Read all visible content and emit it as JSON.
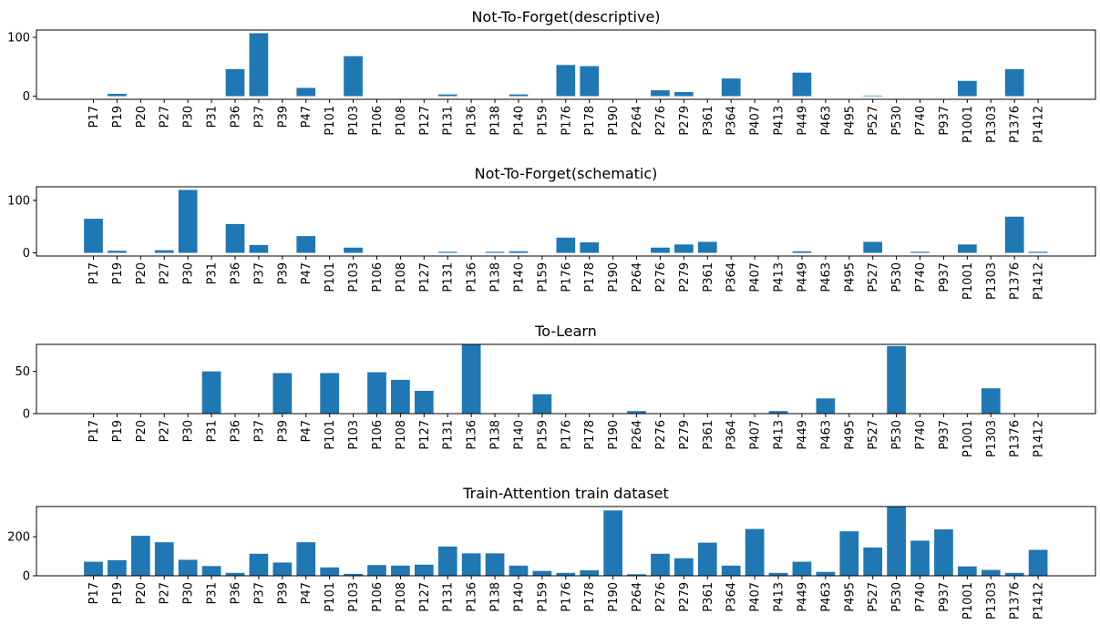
{
  "chart_data": [
    {
      "type": "bar",
      "title": "Not-To-Forget(descriptive)",
      "xlabel": "",
      "ylabel": "",
      "categories": [
        "P17",
        "P19",
        "P20",
        "P27",
        "P30",
        "P31",
        "P36",
        "P37",
        "P39",
        "P47",
        "P101",
        "P103",
        "P106",
        "P108",
        "P127",
        "P131",
        "P136",
        "P138",
        "P140",
        "P159",
        "P176",
        "P178",
        "P190",
        "P264",
        "P276",
        "P279",
        "P361",
        "P364",
        "P407",
        "P413",
        "P449",
        "P463",
        "P495",
        "P527",
        "P530",
        "P740",
        "P937",
        "P1001",
        "P1303",
        "P1376",
        "P1412"
      ],
      "values": [
        0,
        4,
        0,
        0,
        0,
        0,
        46,
        107,
        0,
        14,
        0,
        68,
        0,
        0,
        0,
        3,
        0,
        0,
        3,
        0,
        53,
        51,
        0,
        0,
        10,
        7,
        0,
        30,
        0,
        0,
        40,
        0,
        0,
        1,
        0,
        0,
        0,
        26,
        0,
        46,
        0
      ],
      "ylim": [
        -5.35,
        112.35
      ],
      "yticks": [
        0,
        100
      ],
      "color": "#1f77b4",
      "grid": false
    },
    {
      "type": "bar",
      "title": "Not-To-Forget(schematic)",
      "xlabel": "",
      "ylabel": "",
      "categories": [
        "P17",
        "P19",
        "P20",
        "P27",
        "P30",
        "P31",
        "P36",
        "P37",
        "P39",
        "P47",
        "P101",
        "P103",
        "P106",
        "P108",
        "P127",
        "P131",
        "P136",
        "P138",
        "P140",
        "P159",
        "P176",
        "P178",
        "P190",
        "P264",
        "P276",
        "P279",
        "P361",
        "P364",
        "P407",
        "P413",
        "P449",
        "P463",
        "P495",
        "P527",
        "P530",
        "P740",
        "P937",
        "P1001",
        "P1303",
        "P1376",
        "P1412"
      ],
      "values": [
        65,
        4,
        0,
        5,
        120,
        0,
        55,
        15,
        0,
        32,
        0,
        10,
        0,
        0,
        0,
        2,
        0,
        2,
        3,
        0,
        29,
        20,
        0,
        0,
        10,
        16,
        21,
        0,
        0,
        0,
        3,
        0,
        0,
        21,
        0,
        2,
        0,
        16,
        0,
        69,
        2
      ],
      "ylim": [
        -6,
        126
      ],
      "yticks": [
        0,
        100
      ],
      "color": "#1f77b4",
      "grid": false
    },
    {
      "type": "bar",
      "title": "To-Learn",
      "xlabel": "",
      "ylabel": "",
      "categories": [
        "P17",
        "P19",
        "P20",
        "P27",
        "P30",
        "P31",
        "P36",
        "P37",
        "P39",
        "P47",
        "P101",
        "P103",
        "P106",
        "P108",
        "P127",
        "P131",
        "P136",
        "P138",
        "P140",
        "P159",
        "P176",
        "P178",
        "P190",
        "P264",
        "P276",
        "P279",
        "P361",
        "P364",
        "P407",
        "P413",
        "P449",
        "P463",
        "P495",
        "P527",
        "P530",
        "P740",
        "P937",
        "P1001",
        "P1303",
        "P1376",
        "P1412"
      ],
      "values": [
        0,
        0,
        0,
        0,
        0,
        50,
        0,
        0,
        48,
        0,
        48,
        0,
        49,
        40,
        27,
        0,
        82,
        0,
        0,
        23,
        0,
        0,
        0,
        3,
        0,
        0,
        0,
        0,
        0,
        3,
        0,
        18,
        0,
        0,
        80,
        0,
        0,
        0,
        30,
        0,
        0
      ],
      "ylim": [
        0,
        82
      ],
      "yticks": [
        0,
        50
      ],
      "color": "#1f77b4",
      "grid": false
    },
    {
      "type": "bar",
      "title": "Train-Attention train dataset",
      "xlabel": "",
      "ylabel": "",
      "categories": [
        "P17",
        "P19",
        "P20",
        "P27",
        "P30",
        "P31",
        "P36",
        "P37",
        "P39",
        "P47",
        "P101",
        "P103",
        "P106",
        "P108",
        "P127",
        "P131",
        "P136",
        "P138",
        "P140",
        "P159",
        "P176",
        "P178",
        "P190",
        "P264",
        "P276",
        "P279",
        "P361",
        "P364",
        "P407",
        "P413",
        "P449",
        "P463",
        "P495",
        "P527",
        "P530",
        "P740",
        "P937",
        "P1001",
        "P1303",
        "P1376",
        "P1412"
      ],
      "values": [
        72,
        80,
        205,
        172,
        82,
        50,
        15,
        113,
        68,
        172,
        43,
        10,
        55,
        52,
        57,
        150,
        115,
        115,
        52,
        25,
        15,
        28,
        335,
        8,
        113,
        90,
        170,
        52,
        240,
        15,
        72,
        20,
        228,
        145,
        355,
        180,
        238,
        48,
        30,
        15,
        133
      ],
      "ylim": [
        0,
        355
      ],
      "yticks": [
        0,
        200
      ],
      "color": "#1f77b4",
      "grid": false
    }
  ]
}
